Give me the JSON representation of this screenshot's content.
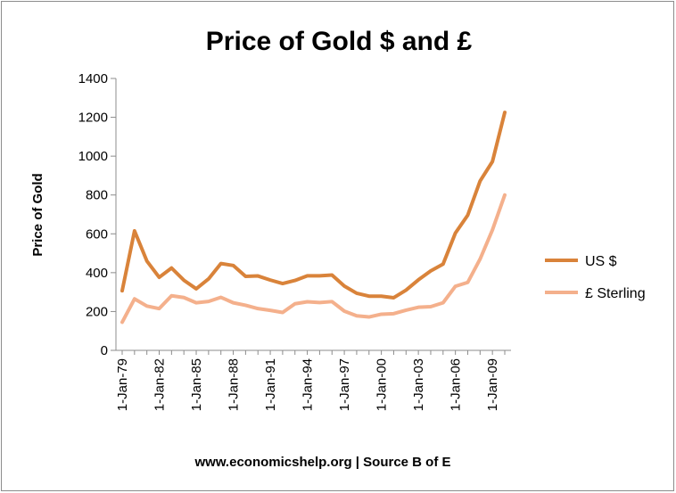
{
  "chart_data": {
    "type": "line",
    "title": "Price of Gold $ and £",
    "ylabel": "Price of Gold",
    "xlabel": "www.economicshelp.org | Source B of E",
    "ylim": [
      0,
      1400
    ],
    "yticks": [
      0,
      200,
      400,
      600,
      800,
      1000,
      1200,
      1400
    ],
    "xlim": [
      1979,
      2010
    ],
    "xticks": [
      {
        "x": 1979,
        "label": "1-Jan-79"
      },
      {
        "x": 1982,
        "label": "1-Jan-82"
      },
      {
        "x": 1985,
        "label": "1-Jan-85"
      },
      {
        "x": 1988,
        "label": "1-Jan-88"
      },
      {
        "x": 1991,
        "label": "1-Jan-91"
      },
      {
        "x": 1994,
        "label": "1-Jan-94"
      },
      {
        "x": 1997,
        "label": "1-Jan-97"
      },
      {
        "x": 2000,
        "label": "1-Jan-00"
      },
      {
        "x": 2003,
        "label": "1-Jan-03"
      },
      {
        "x": 2006,
        "label": "1-Jan-06"
      },
      {
        "x": 2009,
        "label": "1-Jan-09"
      }
    ],
    "x": [
      1979,
      1980,
      1981,
      1982,
      1983,
      1984,
      1985,
      1986,
      1987,
      1988,
      1989,
      1990,
      1991,
      1992,
      1993,
      1994,
      1995,
      1996,
      1997,
      1998,
      1999,
      2000,
      2001,
      2002,
      2003,
      2004,
      2005,
      2006,
      2007,
      2008,
      2009,
      2010
    ],
    "grid": false,
    "legend_position": "right",
    "series": [
      {
        "name": "US $",
        "color": "#d9833a",
        "values": [
          307,
          615,
          460,
          376,
          424,
          361,
          317,
          368,
          447,
          437,
          381,
          383,
          362,
          344,
          360,
          384,
          384,
          388,
          331,
          294,
          279,
          279,
          271,
          310,
          363,
          409,
          444,
          604,
          696,
          872,
          972,
          1225
        ]
      },
      {
        "name": "£ Sterling",
        "color": "#f4b08c",
        "values": [
          145,
          265,
          228,
          215,
          281,
          272,
          245,
          252,
          273,
          245,
          232,
          215,
          206,
          195,
          240,
          250,
          246,
          251,
          202,
          178,
          172,
          186,
          189,
          207,
          222,
          225,
          245,
          330,
          350,
          470,
          620,
          800
        ]
      }
    ]
  }
}
